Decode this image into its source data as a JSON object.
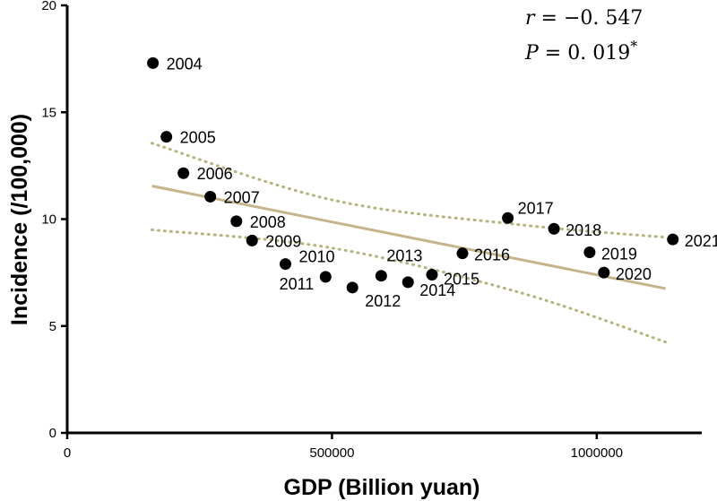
{
  "chart_data": {
    "type": "scatter",
    "xlabel": "GDP (Billion yuan)",
    "ylabel": "Incidence (/100,000)",
    "xlim": [
      0,
      1200000
    ],
    "ylim": [
      0,
      20
    ],
    "x_ticks": [
      0,
      500000,
      1000000
    ],
    "x_tick_labels": [
      "0",
      "500000",
      "1000000"
    ],
    "y_ticks": [
      0,
      5,
      10,
      15,
      20
    ],
    "y_tick_labels": [
      "0",
      "5",
      "10",
      "15",
      "20"
    ],
    "points": [
      {
        "label": "2004",
        "x": 161840,
        "y": 17.3
      },
      {
        "label": "2005",
        "x": 187319,
        "y": 13.85
      },
      {
        "label": "2006",
        "x": 219438,
        "y": 12.15
      },
      {
        "label": "2007",
        "x": 270232,
        "y": 11.05
      },
      {
        "label": "2008",
        "x": 319516,
        "y": 9.9
      },
      {
        "label": "2009",
        "x": 349081,
        "y": 9.0
      },
      {
        "label": "2010",
        "x": 412119,
        "y": 7.9
      },
      {
        "label": "2011",
        "x": 487940,
        "y": 7.3
      },
      {
        "label": "2012",
        "x": 538580,
        "y": 6.8
      },
      {
        "label": "2013",
        "x": 592963,
        "y": 7.35
      },
      {
        "label": "2014",
        "x": 643563,
        "y": 7.05
      },
      {
        "label": "2015",
        "x": 688858,
        "y": 7.4
      },
      {
        "label": "2016",
        "x": 746395,
        "y": 8.4
      },
      {
        "label": "2017",
        "x": 832036,
        "y": 10.05
      },
      {
        "label": "2018",
        "x": 919281,
        "y": 9.55
      },
      {
        "label": "2019",
        "x": 986515,
        "y": 8.45
      },
      {
        "label": "2020",
        "x": 1013567,
        "y": 7.5
      },
      {
        "label": "2021",
        "x": 1143670,
        "y": 9.05
      }
    ],
    "regression_line": {
      "x": [
        160000,
        1130000
      ],
      "y": [
        11.55,
        6.75
      ]
    },
    "confidence_upper": {
      "x": [
        160000,
        500000,
        850000,
        1130000
      ],
      "y": [
        13.55,
        10.9,
        9.75,
        9.15
      ]
    },
    "confidence_lower": {
      "x": [
        160000,
        500000,
        850000,
        1130000
      ],
      "y": [
        9.5,
        8.65,
        6.6,
        4.25
      ]
    },
    "annotations": {
      "r_symbol": "r",
      "r_text": " = −0. 547",
      "p_symbol": "P",
      "p_text": " = 0. 019",
      "p_mark": "*"
    }
  }
}
